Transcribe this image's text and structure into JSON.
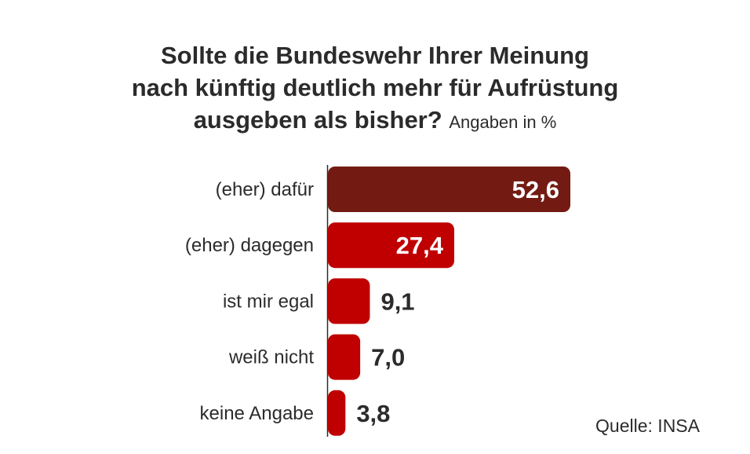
{
  "chart_data": {
    "type": "bar",
    "orientation": "horizontal",
    "title_lines": [
      "Sollte die Bundeswehr Ihrer Meinung",
      "nach künftig deutlich mehr für Aufrüstung",
      "ausgeben als bisher?"
    ],
    "subtitle": "Angaben in %",
    "categories": [
      "(eher) dafür",
      "(eher) dagegen",
      "ist mir egal",
      "weiß nicht",
      "keine Angabe"
    ],
    "values": [
      52.6,
      27.4,
      9.1,
      7.0,
      3.8
    ],
    "value_labels": [
      "52,6",
      "27,4",
      "9,1",
      "7,0",
      "3,8"
    ],
    "colors": [
      "#731b13",
      "#c00000",
      "#c00000",
      "#c00000",
      "#c00000"
    ],
    "xlabel": "",
    "ylabel": "",
    "xlim": [
      0,
      52.6
    ],
    "grid": false,
    "source": "Quelle: INSA"
  }
}
